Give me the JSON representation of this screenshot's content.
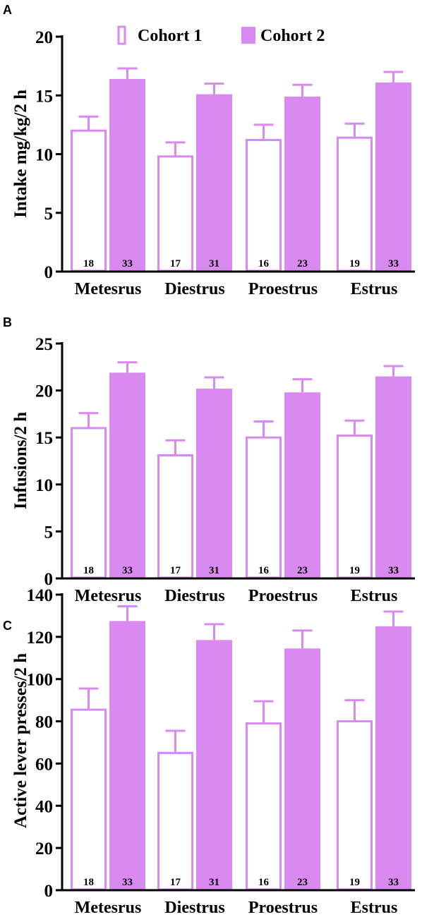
{
  "colors": {
    "cohort1_fill": "#ffffff",
    "cohort1_stroke": "#d98af0",
    "cohort2_fill": "#d98af0",
    "axis": "#000000"
  },
  "legend": {
    "position": "top",
    "items": [
      {
        "label": "Cohort 1",
        "style": "open"
      },
      {
        "label": "Cohort 2",
        "style": "filled"
      }
    ]
  },
  "chart_data": [
    {
      "panel": "A",
      "type": "bar",
      "ylabel": "Intake mg/kg/2 h",
      "ylim": [
        0,
        20
      ],
      "yticks": [
        0,
        5,
        10,
        15,
        20
      ],
      "categories": [
        "Metesrus",
        "Diestrus",
        "Proestrus",
        "Estrus"
      ],
      "series": [
        {
          "name": "Cohort 1",
          "values": [
            12.0,
            9.8,
            11.2,
            11.4
          ],
          "errors": [
            1.2,
            1.2,
            1.3,
            1.2
          ],
          "n": [
            "18",
            "17",
            "16",
            "19"
          ]
        },
        {
          "name": "Cohort 2",
          "values": [
            16.4,
            15.1,
            14.9,
            16.1
          ],
          "errors": [
            0.9,
            0.9,
            1.0,
            0.9
          ],
          "n": [
            "33",
            "31",
            "23",
            "33"
          ]
        }
      ]
    },
    {
      "panel": "B",
      "type": "bar",
      "ylabel": "Infusions/2 h",
      "ylim": [
        0,
        25
      ],
      "yticks": [
        0,
        5,
        10,
        15,
        20,
        25
      ],
      "categories": [
        "Metesrus",
        "Diestrus",
        "Proestrus",
        "Estrus"
      ],
      "series": [
        {
          "name": "Cohort 1",
          "values": [
            16.0,
            13.1,
            15.0,
            15.2
          ],
          "errors": [
            1.6,
            1.6,
            1.7,
            1.6
          ],
          "n": [
            "18",
            "17",
            "16",
            "19"
          ]
        },
        {
          "name": "Cohort 2",
          "values": [
            21.9,
            20.2,
            19.8,
            21.5
          ],
          "errors": [
            1.1,
            1.2,
            1.4,
            1.1
          ],
          "n": [
            "33",
            "31",
            "23",
            "33"
          ]
        }
      ]
    },
    {
      "panel": "C",
      "type": "bar",
      "ylabel": "Active lever presses/2 h",
      "ylim": [
        0,
        140
      ],
      "yticks": [
        0,
        20,
        40,
        60,
        80,
        100,
        120,
        140
      ],
      "categories": [
        "Metesrus",
        "Diestrus",
        "Proestrus",
        "Estrus"
      ],
      "series": [
        {
          "name": "Cohort 1",
          "values": [
            85.5,
            65.0,
            79.0,
            80.0
          ],
          "errors": [
            10.0,
            10.5,
            10.5,
            10.0
          ],
          "n": [
            "18",
            "17",
            "16",
            "19"
          ]
        },
        {
          "name": "Cohort 2",
          "values": [
            127.5,
            118.5,
            114.5,
            125.0
          ],
          "errors": [
            7.0,
            7.5,
            8.5,
            7.0
          ],
          "n": [
            "33",
            "31",
            "23",
            "33"
          ]
        }
      ]
    }
  ]
}
